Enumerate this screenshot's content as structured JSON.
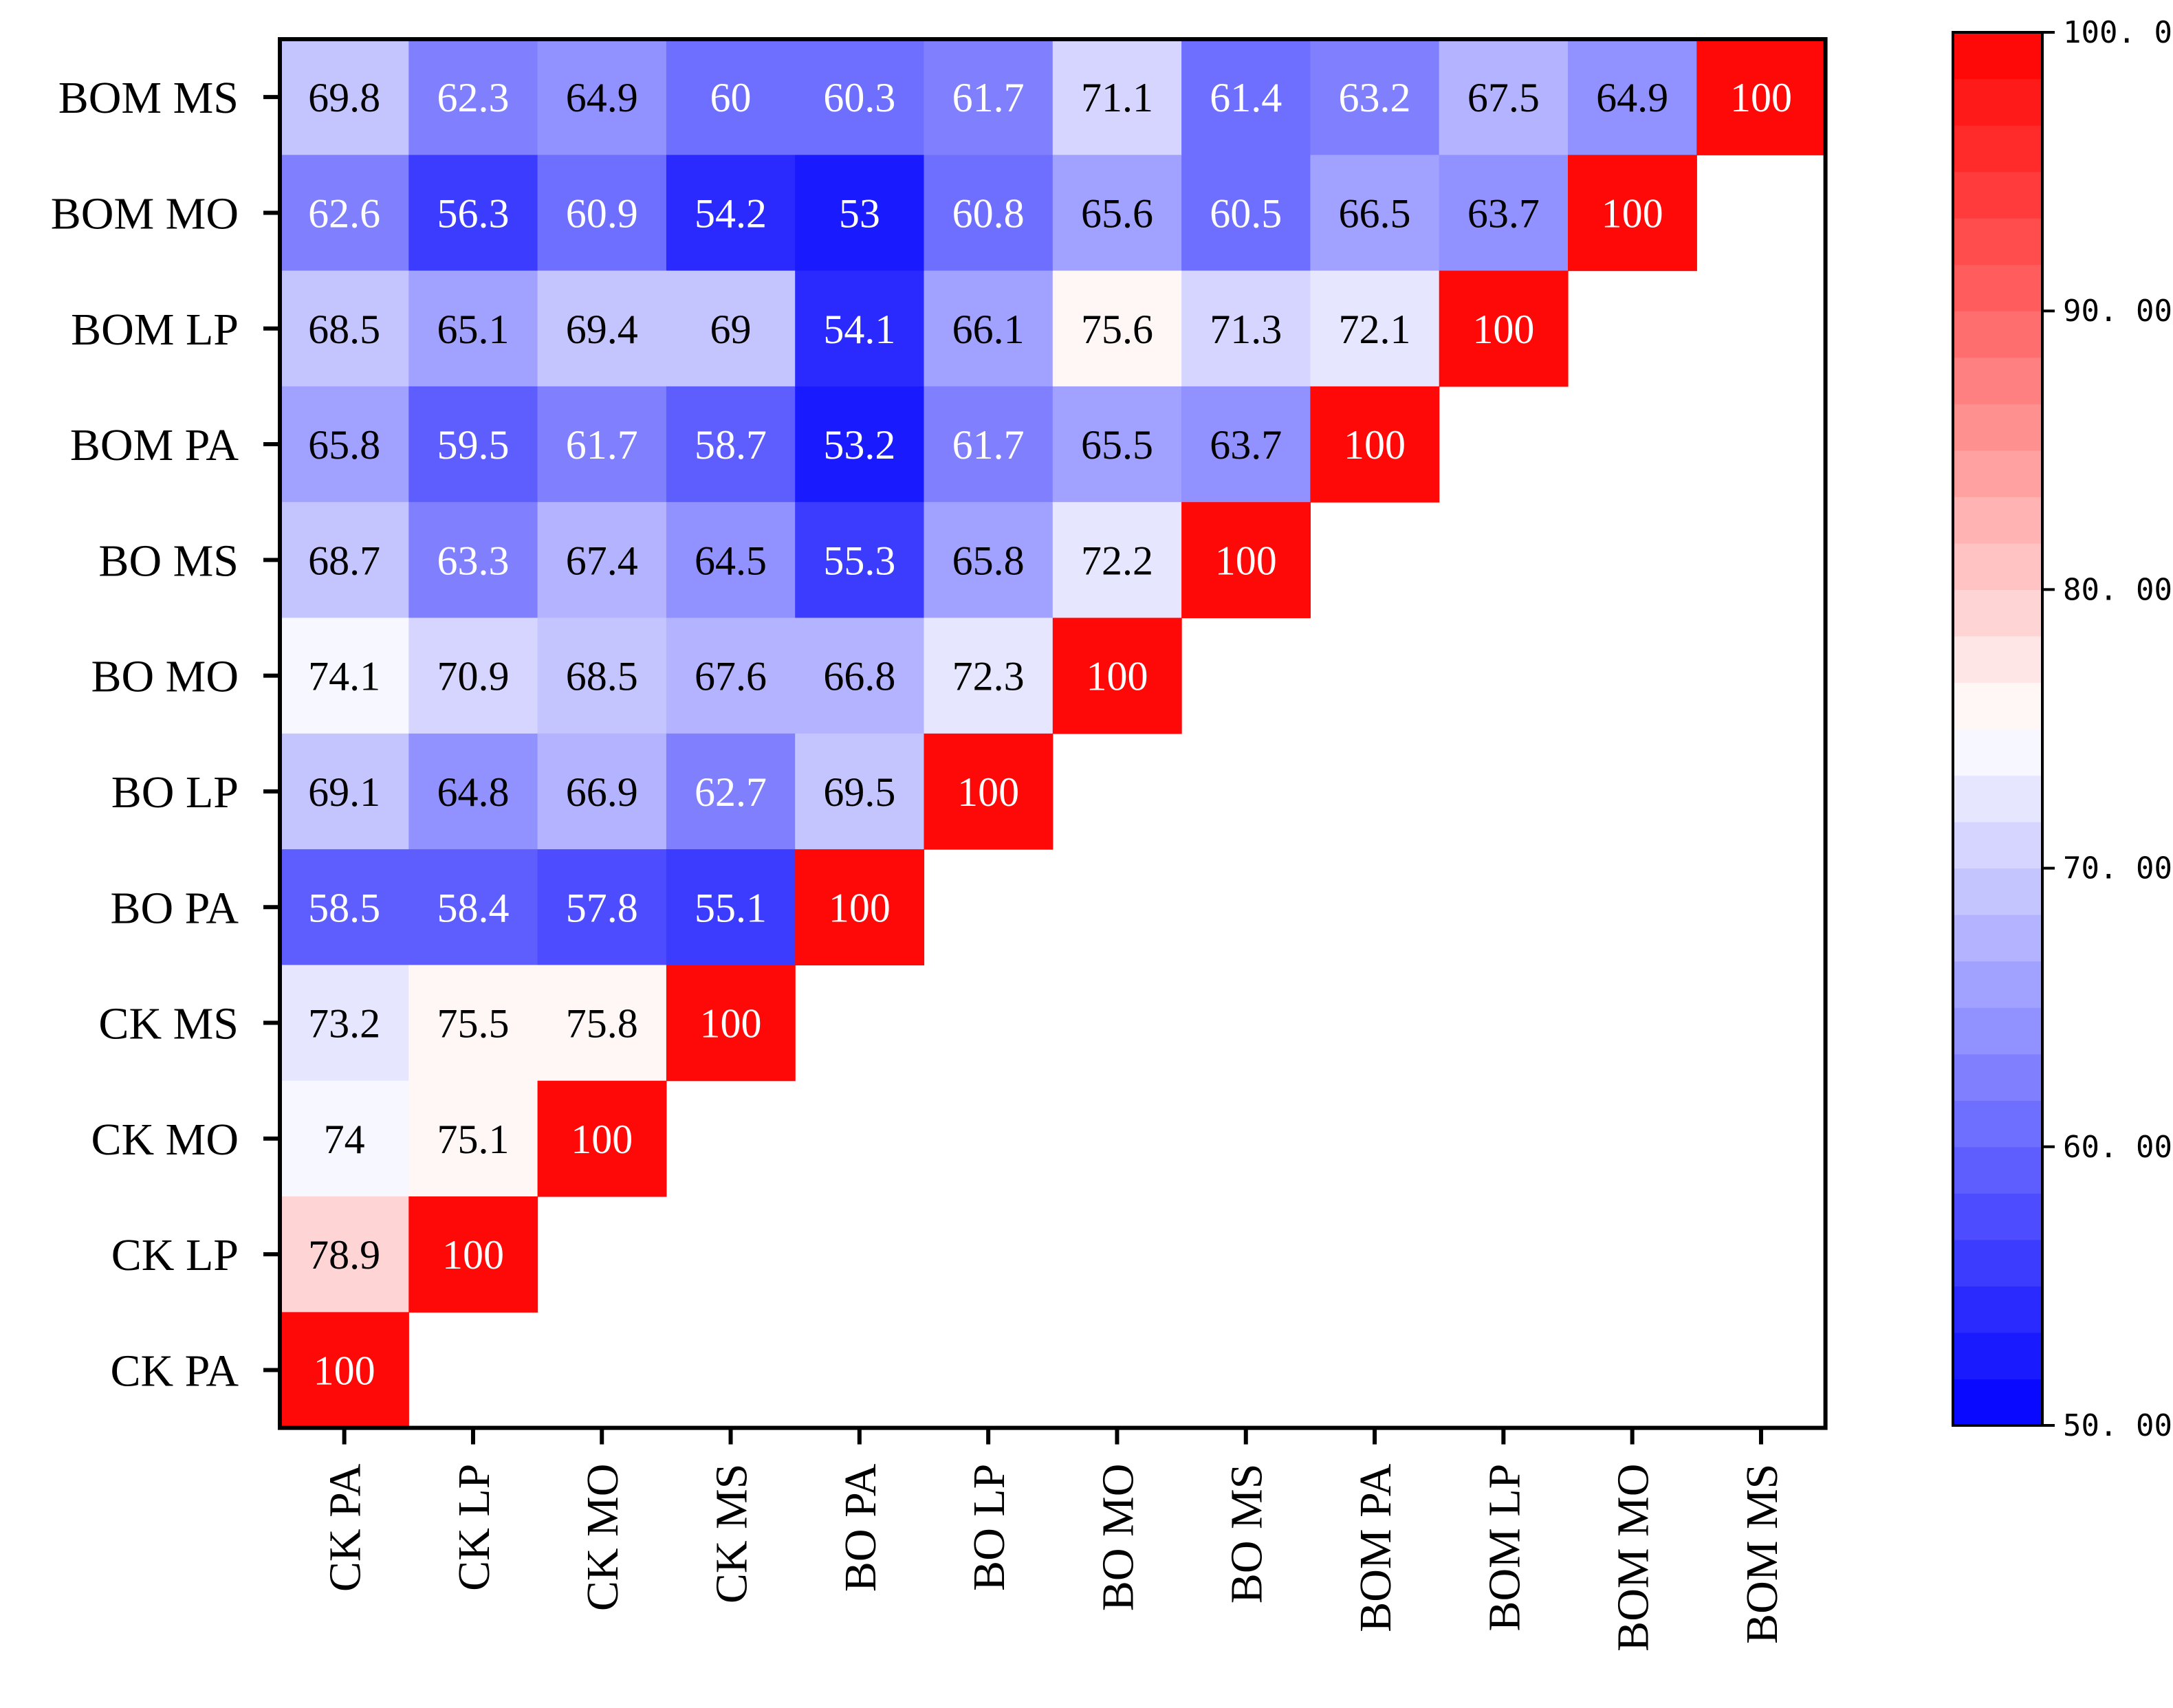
{
  "chart_data": {
    "type": "heatmap",
    "title": "",
    "xlabel": "",
    "ylabel": "",
    "x_categories": [
      "CK PA",
      "CK LP",
      "CK MO",
      "CK MS",
      "BO PA",
      "BO LP",
      "BO MO",
      "BO MS",
      "BOM PA",
      "BOM LP",
      "BOM MO",
      "BOM MS"
    ],
    "y_categories_top_to_bottom": [
      "BOM MS",
      "BOM MO",
      "BOM LP",
      "BOM PA",
      "BO MS",
      "BO MO",
      "BO LP",
      "BO PA",
      "CK MS",
      "CK MO",
      "CK LP",
      "CK PA"
    ],
    "matrix": [
      [
        69.8,
        62.3,
        64.9,
        60,
        60.3,
        61.7,
        71.1,
        61.4,
        63.2,
        67.5,
        64.9,
        100
      ],
      [
        62.6,
        56.3,
        60.9,
        54.2,
        53,
        60.8,
        65.6,
        60.5,
        66.5,
        63.7,
        100,
        null
      ],
      [
        68.5,
        65.1,
        69.4,
        69,
        54.1,
        66.1,
        75.6,
        71.3,
        72.1,
        100,
        null,
        null
      ],
      [
        65.8,
        59.5,
        61.7,
        58.7,
        53.2,
        61.7,
        65.5,
        63.7,
        100,
        null,
        null,
        null
      ],
      [
        68.7,
        63.3,
        67.4,
        64.5,
        55.3,
        65.8,
        72.2,
        100,
        null,
        null,
        null,
        null
      ],
      [
        74.1,
        70.9,
        68.5,
        67.6,
        66.8,
        72.3,
        100,
        null,
        null,
        null,
        null,
        null
      ],
      [
        69.1,
        64.8,
        66.9,
        62.7,
        69.5,
        100,
        null,
        null,
        null,
        null,
        null,
        null
      ],
      [
        58.5,
        58.4,
        57.8,
        55.1,
        100,
        null,
        null,
        null,
        null,
        null,
        null,
        null
      ],
      [
        73.2,
        75.5,
        75.8,
        100,
        null,
        null,
        null,
        null,
        null,
        null,
        null,
        null
      ],
      [
        74,
        75.1,
        100,
        null,
        null,
        null,
        null,
        null,
        null,
        null,
        null,
        null
      ],
      [
        78.9,
        100,
        null,
        null,
        null,
        null,
        null,
        null,
        null,
        null,
        null,
        null
      ],
      [
        100,
        null,
        null,
        null,
        null,
        null,
        null,
        null,
        null,
        null,
        null,
        null
      ]
    ],
    "colorbar": {
      "min": 50,
      "max": 100,
      "tick_values": [
        50,
        60,
        70,
        80,
        90,
        100
      ],
      "tick_labels": [
        "50. 00",
        "60. 00",
        "70. 00",
        "80. 00",
        "90. 00",
        "100. 0"
      ],
      "low_color": "#0000ff",
      "mid_color": "#ffffff",
      "high_color": "#ff0000",
      "mid_value": 75,
      "steps": 30
    }
  }
}
